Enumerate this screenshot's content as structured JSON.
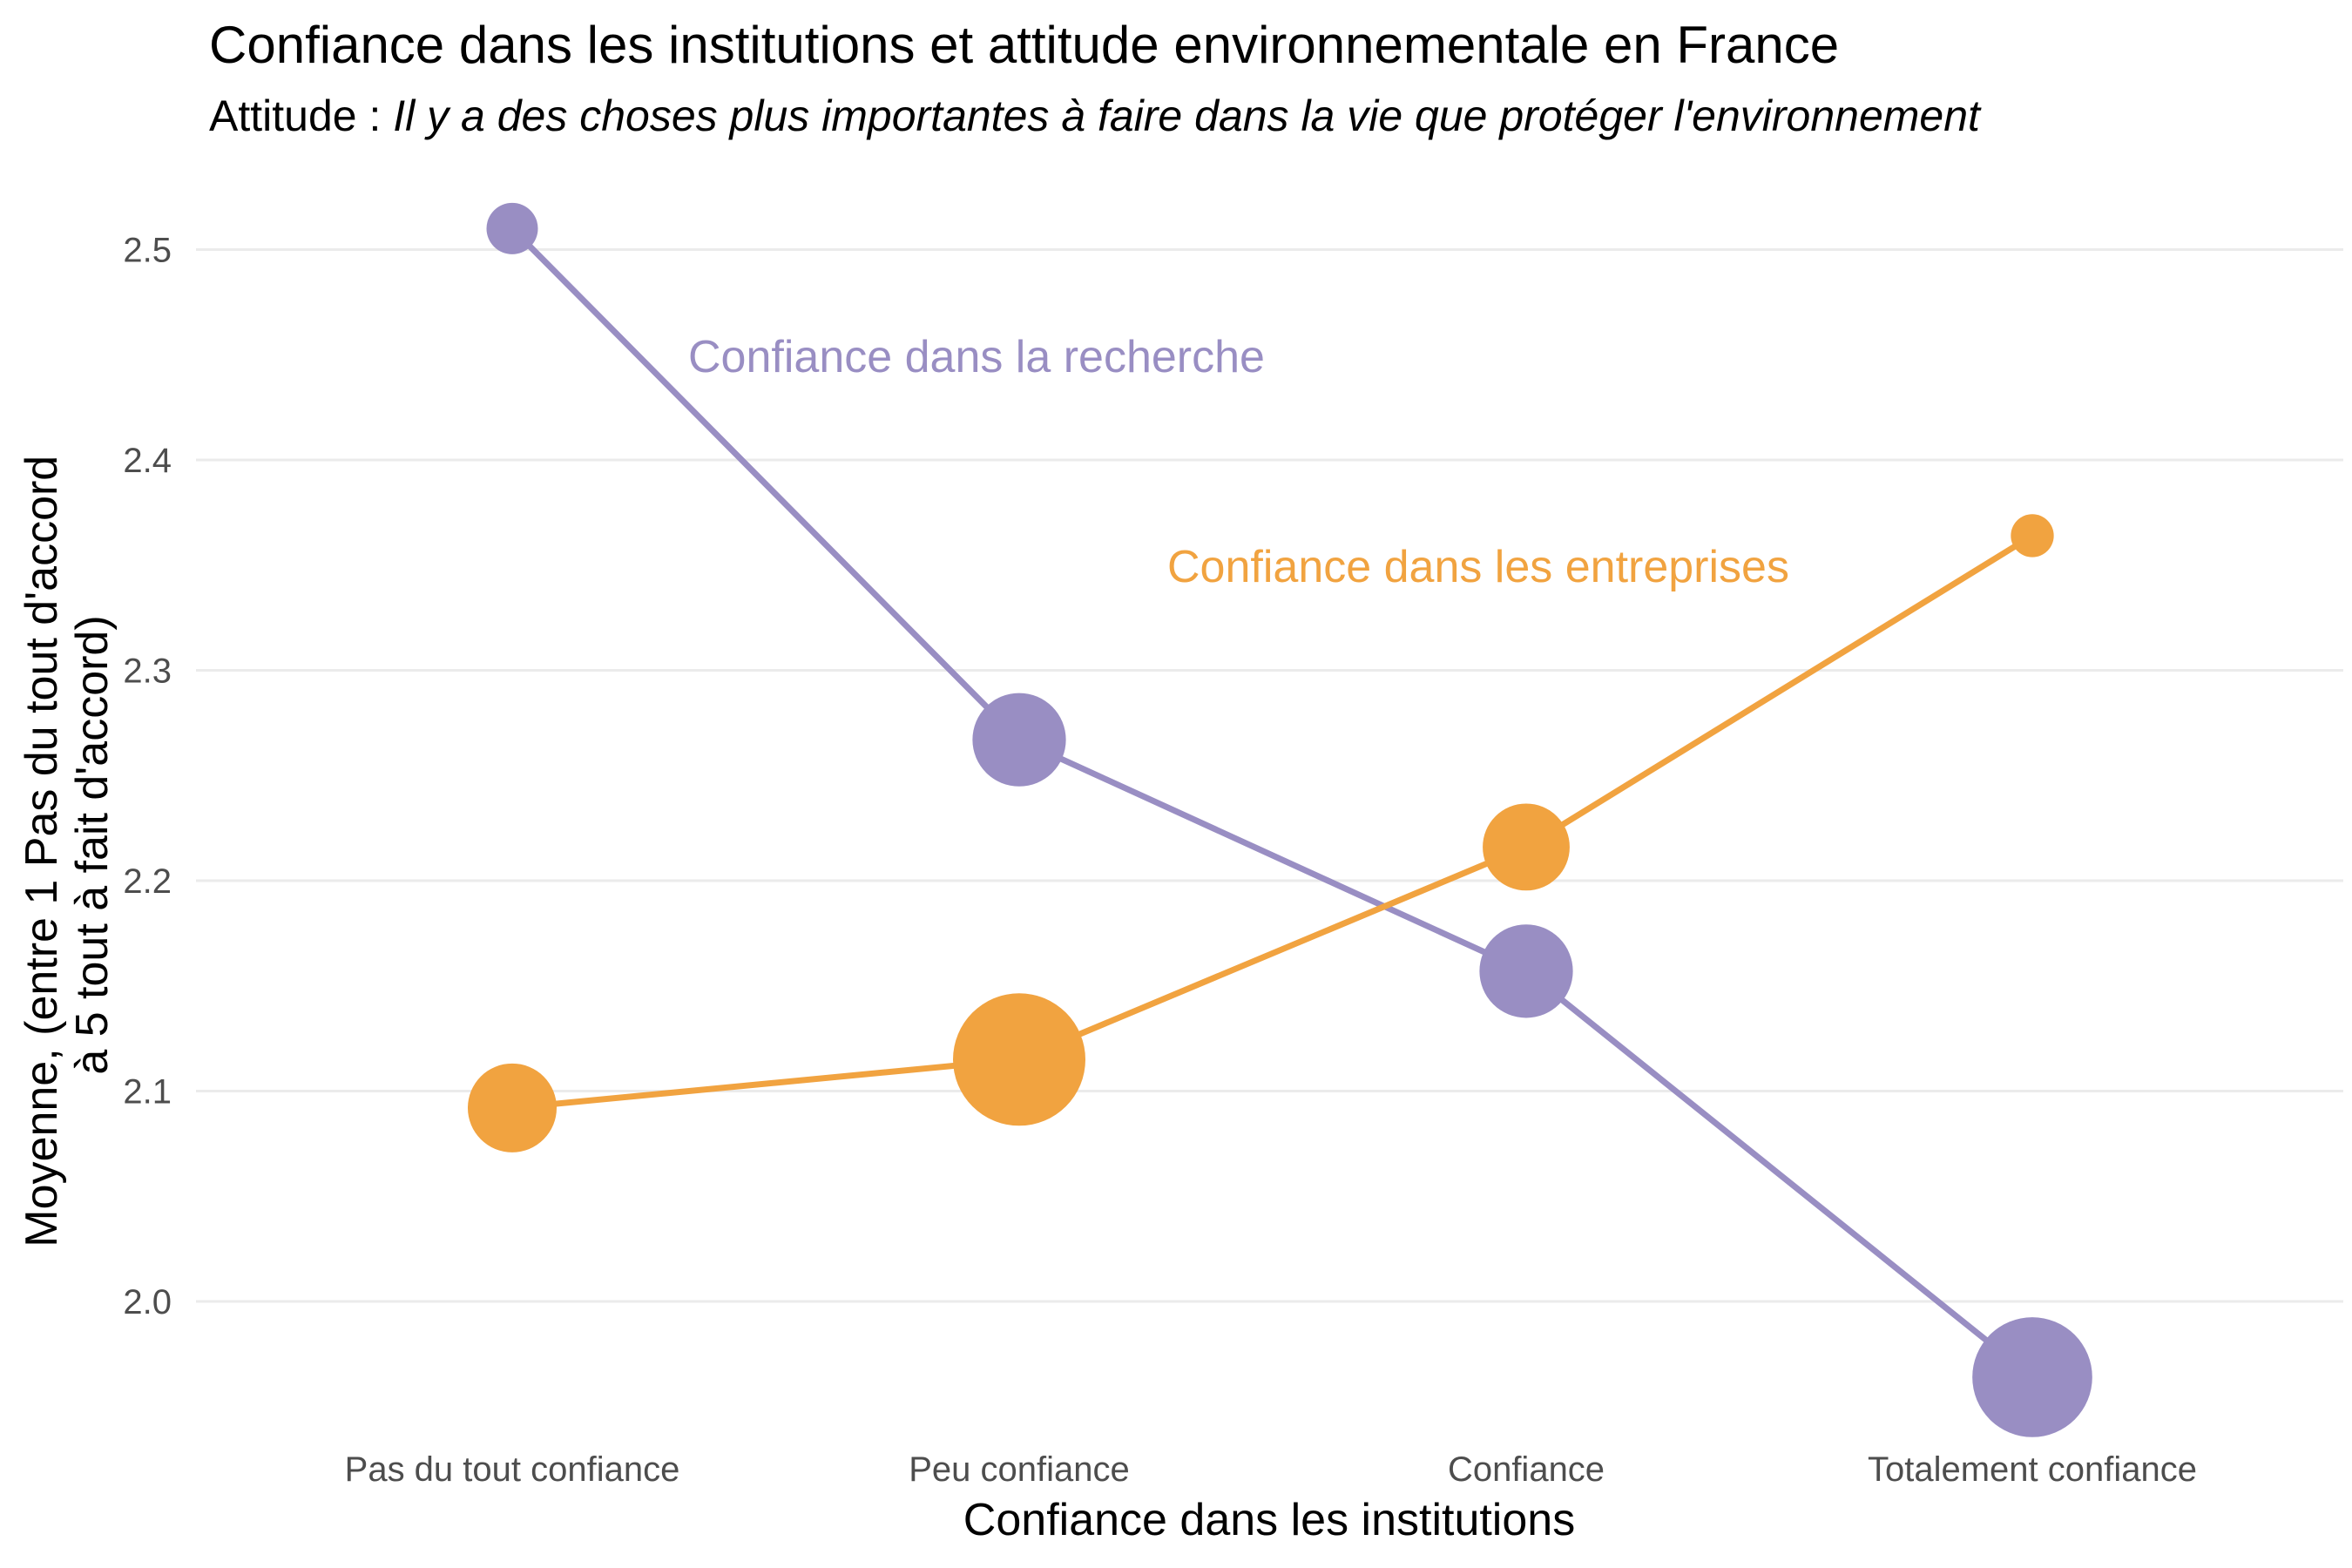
{
  "chart_data": {
    "type": "line",
    "title": "Confiance dans les institutions et attitude environnementale en France",
    "subtitle_prefix": "Attitude : ",
    "subtitle_italic": "Il y a des choses plus importantes à faire dans la vie que protéger l'environnement",
    "xlabel": "Confiance dans les institutions",
    "ylabel_line1": "Moyenne, (entre 1 Pas du tout d'accord",
    "ylabel_line2": "à 5 tout à fait d'accord)",
    "categories": [
      "Pas du tout confiance",
      "Peu confiance",
      "Confiance",
      "Totalement confiance"
    ],
    "ylim": [
      1.93,
      2.53
    ],
    "yticks": [
      "2.0",
      "2.1",
      "2.2",
      "2.3",
      "2.4",
      "2.5"
    ],
    "grid": true,
    "legend": "none (direct labels)",
    "series": [
      {
        "name": "Confiance dans la recherche",
        "color": "#998ec3",
        "values": [
          2.51,
          2.267,
          2.157,
          1.964
        ],
        "point_size_relative": [
          0.1,
          0.45,
          0.45,
          0.8
        ]
      },
      {
        "name": "Confiance dans les entreprises",
        "color": "#f1a340",
        "values": [
          2.092,
          2.115,
          2.216,
          2.364
        ],
        "point_size_relative": [
          0.4,
          1.0,
          0.38,
          0.06
        ]
      }
    ]
  }
}
